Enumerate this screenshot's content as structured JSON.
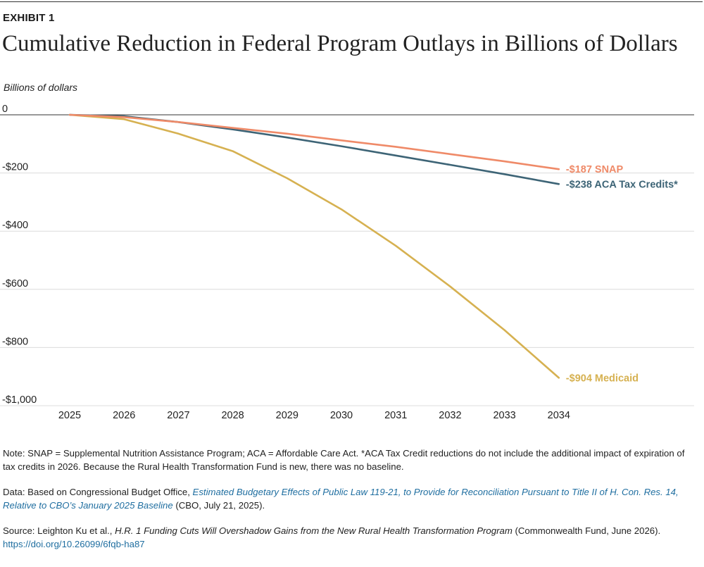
{
  "header": {
    "exhibit": "EXHIBIT 1"
  },
  "chart_data": {
    "type": "line",
    "title": "Cumulative Reduction in Federal Program Outlays in Billions of Dollars",
    "ylabel": "Billions of dollars",
    "xlabel": "",
    "ylim": [
      -1000,
      0
    ],
    "ytick_values": [
      0,
      -200,
      -400,
      -600,
      -800,
      -1000
    ],
    "ytick_labels": [
      "0",
      "-$200",
      "-$400",
      "-$600",
      "-$800",
      "-$1,000"
    ],
    "x": [
      "2025",
      "2026",
      "2027",
      "2028",
      "2029",
      "2030",
      "2031",
      "2032",
      "2033",
      "2034"
    ],
    "grid": true,
    "series": [
      {
        "name": "SNAP",
        "label": "-$187 SNAP",
        "color": "#ef8a68",
        "values": [
          0,
          -8,
          -25,
          -45,
          -65,
          -88,
          -110,
          -135,
          -160,
          -187
        ]
      },
      {
        "name": "ACA Tax Credits*",
        "label": "-$238 ACA Tax Credits*",
        "color": "#3d6476",
        "values": [
          0,
          -5,
          -25,
          -50,
          -78,
          -108,
          -140,
          -172,
          -204,
          -238
        ]
      },
      {
        "name": "Medicaid",
        "label": "-$904 Medicaid",
        "color": "#d6b151",
        "values": [
          0,
          -15,
          -65,
          -125,
          -218,
          -325,
          -450,
          -590,
          -740,
          -904
        ]
      }
    ]
  },
  "notes": {
    "note": "Note: SNAP = Supplemental Nutrition Assistance Program; ACA = Affordable Care Act. *ACA Tax Credit reductions do not include the additional impact of expiration of tax credits in 2026. Because the Rural Health Transformation Fund is new, there was no baseline.",
    "data_prefix": "Data: Based on Congressional Budget Office, ",
    "data_link": "Estimated Budgetary Effects of Public Law 119-21, to Provide for Reconciliation Pursuant to Title II of H. Con. Res. 14, Relative to CBO’s January 2025 Baseline",
    "data_suffix": " (CBO, July 21, 2025).",
    "source_prefix": "Source: Leighton Ku et al., ",
    "source_title": "H.R. 1 Funding Cuts Will Overshadow Gains from the New Rural Health Transformation Program",
    "source_suffix": " (Commonwealth Fund, June 2026).",
    "source_url": "https://doi.org/10.26099/6fqb-ha87"
  }
}
